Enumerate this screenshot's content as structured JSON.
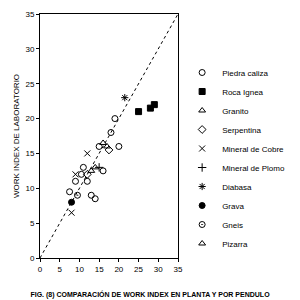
{
  "chart_data": {
    "type": "scatter",
    "title": "FIG. (8) COMPARACIÓN DE WORK INDEX EN PLANTA Y POR PENDULO",
    "y_label": "WORK INDEX DE LABORATORIO",
    "xlim": [
      0,
      35
    ],
    "ylim": [
      0,
      35
    ],
    "xticks": [
      0,
      5,
      10,
      15,
      20,
      25,
      30,
      35
    ],
    "yticks": [
      0,
      5,
      10,
      15,
      20,
      25,
      30,
      35
    ],
    "grid": false,
    "legend": "right",
    "series": [
      {
        "type": "line",
        "line_style": "dot",
        "color": "#000000",
        "x": [
          0,
          35
        ],
        "values": [
          0,
          35
        ]
      },
      {
        "name": "Piedra caliza",
        "marker": "circle-open",
        "color": "#000000",
        "x": [
          7.5,
          9,
          10.5,
          11,
          12,
          13,
          14,
          15,
          16,
          18,
          19,
          20
        ],
        "values": [
          9.5,
          11,
          12,
          13,
          11,
          9,
          8.5,
          16,
          12.5,
          18,
          20,
          16
        ]
      },
      {
        "name": "Roca Ignea",
        "marker": "square",
        "color": "#000000",
        "x": [
          25,
          28,
          29
        ],
        "values": [
          21,
          21.5,
          22
        ]
      },
      {
        "name": "Granito",
        "marker": "triangle-up-open",
        "color": "#000000",
        "x": [
          14,
          16,
          17
        ],
        "values": [
          13,
          16.5,
          16
        ]
      },
      {
        "name": "Serpentina",
        "marker": "diamond-open",
        "color": "#000000",
        "x": [
          12,
          17.5
        ],
        "values": [
          12,
          15.5
        ]
      },
      {
        "name": "Mineral de Cobre",
        "marker": "x-thin-open",
        "color": "#000000",
        "x": [
          8,
          9,
          12
        ],
        "values": [
          6.5,
          12,
          15
        ]
      },
      {
        "name": "Mineral de Plomo",
        "marker": "cross-thin-open",
        "color": "#000000",
        "x": [
          15
        ],
        "values": [
          13
        ]
      },
      {
        "name": "Diabasa",
        "marker": "asterisk-open",
        "color": "#000000",
        "x": [
          21.5
        ],
        "values": [
          23
        ]
      },
      {
        "name": "Grava",
        "marker": "circle",
        "color": "#000000",
        "x": [
          8
        ],
        "values": [
          8
        ]
      },
      {
        "name": "Gneis",
        "marker": "circle-open-dot",
        "color": "#000000",
        "x": [
          9.5
        ],
        "values": [
          9
        ]
      },
      {
        "name": "Pizarra",
        "marker": "triangle-up-open",
        "color": "#000000",
        "x": [
          13
        ],
        "values": [
          12.5
        ]
      }
    ]
  }
}
